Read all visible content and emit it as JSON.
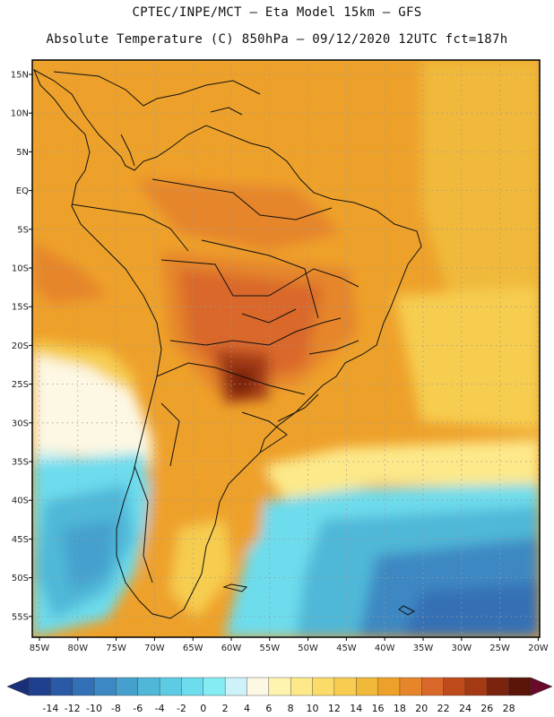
{
  "header": {
    "line1": "CPTEC/INPE/MCT –  Eta Model 15km – GFS",
    "line2": "Absolute Temperature (C) 850hPa – 09/12/2020 12UTC fct=187h"
  },
  "axes": {
    "lat_labels": [
      "15N",
      "10N",
      "5N",
      "EQ",
      "5S",
      "10S",
      "15S",
      "20S",
      "25S",
      "30S",
      "35S",
      "40S",
      "45S",
      "50S",
      "55S"
    ],
    "lon_labels": [
      "85W",
      "80W",
      "75W",
      "70W",
      "65W",
      "60W",
      "55W",
      "50W",
      "45W",
      "40W",
      "35W",
      "30W",
      "25W",
      "20W"
    ]
  },
  "colorbar": {
    "labels": [
      "-14",
      "-12",
      "-10",
      "-8",
      "-6",
      "-4",
      "-2",
      "0",
      "2",
      "4",
      "6",
      "8",
      "10",
      "12",
      "14",
      "16",
      "18",
      "20",
      "22",
      "24",
      "26",
      "28"
    ],
    "colors": [
      "#1f3f8f",
      "#2a5aa5",
      "#3470b5",
      "#3d88c2",
      "#45a0cd",
      "#50b7d8",
      "#5dcbe3",
      "#6ddcec",
      "#85ecf4",
      "#cdf3f8",
      "#fdf8e4",
      "#fef4b0",
      "#fde98a",
      "#fbdc6a",
      "#f6cd50",
      "#f0b93a",
      "#eea12a",
      "#e6852a",
      "#d9682a",
      "#bf4a1c",
      "#a33a14",
      "#7a2410",
      "#5a1408"
    ]
  },
  "legend": {
    "underflow_color": "#1a2f7a",
    "overflow_color": "#6a0a2a"
  }
}
